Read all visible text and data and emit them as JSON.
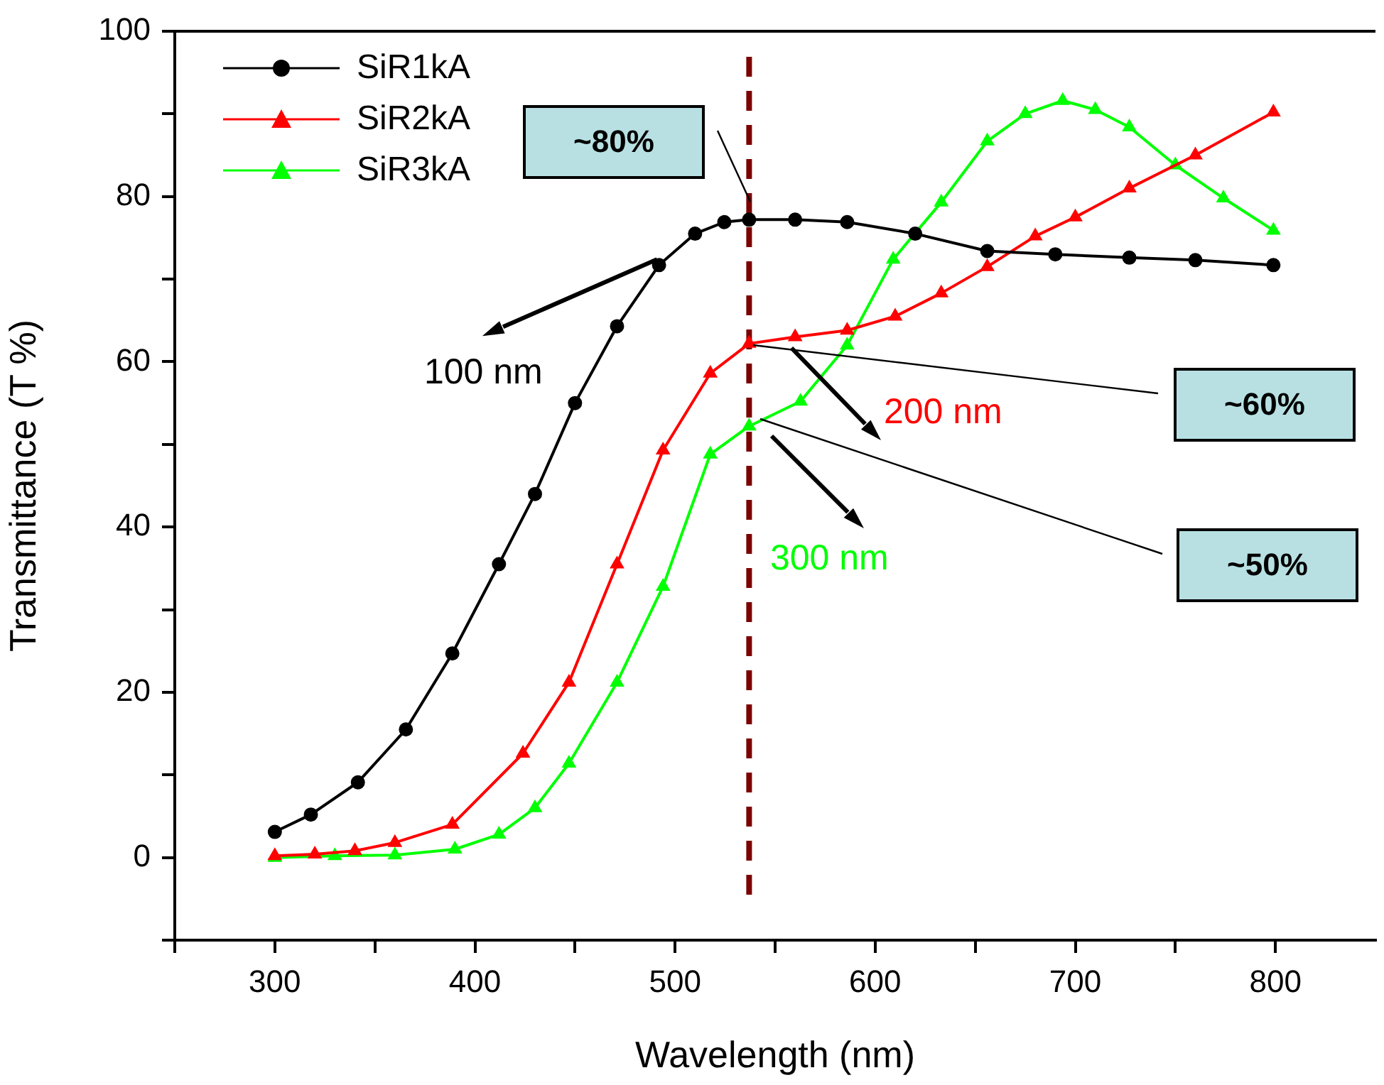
{
  "chart_data": {
    "type": "line",
    "xlabel": "Wavelength (nm)",
    "ylabel": "Transmittance (T %)",
    "xlim": [
      250,
      850
    ],
    "xticks": [
      {
        "value": 250,
        "label": null
      },
      300,
      {
        "value": 350,
        "label": null
      },
      400,
      {
        "value": 450,
        "label": null
      },
      500,
      {
        "value": 550,
        "label": null
      },
      600,
      {
        "value": 650,
        "label": null
      },
      700,
      {
        "value": 750,
        "label": null
      },
      800
    ],
    "ylim": [
      -10,
      100
    ],
    "yticks": [
      {
        "value": -10,
        "label": null
      },
      0,
      {
        "value": 10,
        "label": null
      },
      20,
      {
        "value": 30,
        "label": null
      },
      40,
      {
        "value": 50,
        "label": null
      },
      60,
      {
        "value": 70,
        "label": null
      },
      80,
      {
        "value": 90,
        "label": null
      },
      100
    ],
    "grid": false,
    "legend": "top left",
    "series": [
      {
        "name": "SiR1kA",
        "color": "#000000",
        "marker": "circle",
        "x": [
          300,
          318,
          341.5,
          365.5,
          388.7,
          412,
          430,
          450,
          471,
          492,
          510,
          524.6,
          537,
          560,
          586,
          620,
          656,
          690,
          727,
          760,
          799
        ],
        "values": [
          3.1,
          5.2,
          9.1,
          15.5,
          24.7,
          35.5,
          44,
          55,
          64.3,
          71.7,
          75.5,
          76.9,
          77.2,
          77.2,
          76.9,
          75.5,
          73.4,
          73,
          72.6,
          72.3,
          71.7
        ]
      },
      {
        "name": "SiR2kA",
        "color": "#ff0000",
        "marker": "triangle",
        "x": [
          300,
          320,
          340,
          360,
          388.7,
          424,
          447,
          471,
          494,
          517.6,
          537,
          560,
          586,
          610,
          633,
          656,
          680,
          700,
          727,
          760,
          799
        ],
        "values": [
          0.2,
          0.4,
          0.8,
          1.8,
          4,
          12.6,
          21.2,
          35.5,
          49.3,
          58.6,
          62.2,
          63,
          63.8,
          65.5,
          68.3,
          71.5,
          75.2,
          77.5,
          81,
          85,
          90.2
        ]
      },
      {
        "name": "SiR3kA",
        "color": "#00ff00",
        "marker": "triangle",
        "x": [
          300,
          330,
          360,
          390,
          412,
          430,
          447,
          471,
          494,
          517.6,
          537,
          562.7,
          586,
          609,
          633,
          656,
          675,
          693.7,
          710,
          727,
          750,
          774,
          799
        ],
        "values": [
          0,
          0.2,
          0.3,
          1,
          2.8,
          6,
          11.4,
          21.2,
          32.8,
          48.8,
          52.2,
          55.2,
          62,
          72.4,
          79.3,
          86.7,
          90,
          91.6,
          90.5,
          88.4,
          83.8,
          79.8,
          75.9
        ]
      }
    ],
    "ref_lines": [
      {
        "axis": "x",
        "value": 537,
        "color": "#7b0000",
        "line_style": "dashed"
      }
    ],
    "annotations": [
      "~80%",
      "~60%",
      "~50%",
      {
        "text": "100 nm",
        "x": 491,
        "y": 72.4
      },
      "200 nm",
      "300 nm"
    ]
  }
}
